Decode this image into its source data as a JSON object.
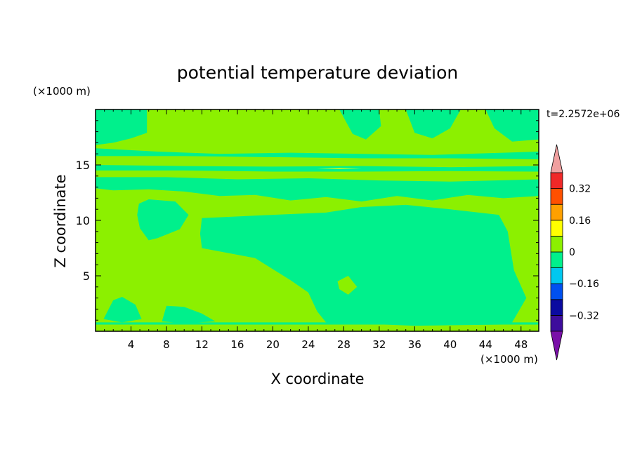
{
  "chart_data": {
    "type": "heatmap",
    "title": "potential temperature deviation",
    "xlabel": "X coordinate",
    "ylabel": "Z coordinate",
    "x_unit": "(×1000 m)",
    "y_unit": "(×1000 m)",
    "time_label": "t=2.2572e+06",
    "xlim": [
      0,
      50
    ],
    "ylim": [
      0,
      20
    ],
    "x_ticks": [
      4,
      8,
      12,
      16,
      20,
      24,
      28,
      32,
      36,
      40,
      44,
      48
    ],
    "y_ticks": [
      5,
      10,
      15
    ],
    "colorbar": {
      "levels": [
        {
          "lo": -0.4,
          "hi": -0.32,
          "color": "#3d0d9c"
        },
        {
          "lo": -0.32,
          "hi": -0.24,
          "color": "#0a0aa0"
        },
        {
          "lo": -0.24,
          "hi": -0.16,
          "color": "#0050f0"
        },
        {
          "lo": -0.16,
          "hi": -0.08,
          "color": "#00c8f0"
        },
        {
          "lo": -0.08,
          "hi": 0,
          "color": "#00f08c"
        },
        {
          "lo": 0,
          "hi": 0.08,
          "color": "#8cf000"
        },
        {
          "lo": 0.08,
          "hi": 0.16,
          "color": "#ffff00"
        },
        {
          "lo": 0.16,
          "hi": 0.24,
          "color": "#ffa000"
        },
        {
          "lo": 0.24,
          "hi": 0.32,
          "color": "#ff5000"
        },
        {
          "lo": 0.32,
          "hi": 0.4,
          "color": "#f02828"
        }
      ],
      "under_color": "#7a10a8",
      "over_color": "#f0a0a0",
      "tick_labels": [
        {
          "value": 0.32,
          "label": "0.32"
        },
        {
          "value": 0.16,
          "label": "0.16"
        },
        {
          "value": 0,
          "label": "0"
        },
        {
          "value": -0.16,
          "label": "−0.16"
        },
        {
          "value": -0.32,
          "label": "−0.32"
        }
      ]
    },
    "regions": [
      {
        "level": 0.04,
        "note": "background",
        "points": [
          [
            0,
            0
          ],
          [
            50,
            0
          ],
          [
            50,
            20
          ],
          [
            0,
            20
          ]
        ]
      },
      {
        "level": -0.04,
        "points": [
          [
            0,
            20
          ],
          [
            5.8,
            20
          ],
          [
            5.8,
            17.9
          ],
          [
            4,
            17.4
          ],
          [
            2,
            17.0
          ],
          [
            0,
            16.8
          ]
        ]
      },
      {
        "level": -0.04,
        "points": [
          [
            27.5,
            20
          ],
          [
            32,
            20
          ],
          [
            32.2,
            18.5
          ],
          [
            30.5,
            17.3
          ],
          [
            29,
            17.8
          ]
        ]
      },
      {
        "level": -0.04,
        "points": [
          [
            35,
            20
          ],
          [
            41.2,
            20
          ],
          [
            40,
            18.3
          ],
          [
            38,
            17.4
          ],
          [
            36,
            17.9
          ]
        ]
      },
      {
        "level": -0.04,
        "points": [
          [
            44,
            20
          ],
          [
            50,
            20
          ],
          [
            50,
            17.3
          ],
          [
            47,
            17.1
          ],
          [
            45,
            18.3
          ]
        ]
      },
      {
        "level": -0.04,
        "points": [
          [
            0,
            16.5
          ],
          [
            7,
            16.2
          ],
          [
            14,
            16.0
          ],
          [
            22,
            16.1
          ],
          [
            30,
            16.0
          ],
          [
            38,
            15.9
          ],
          [
            46,
            16.1
          ],
          [
            50,
            16.2
          ],
          [
            50,
            15.5
          ],
          [
            40,
            15.6
          ],
          [
            30,
            15.6
          ],
          [
            20,
            15.7
          ],
          [
            10,
            15.8
          ],
          [
            0,
            15.8
          ]
        ]
      },
      {
        "level": -0.04,
        "points": [
          [
            0,
            15.0
          ],
          [
            10,
            14.9
          ],
          [
            20,
            14.85
          ],
          [
            30,
            14.9
          ],
          [
            40,
            14.8
          ],
          [
            50,
            14.9
          ],
          [
            50,
            14.4
          ],
          [
            40,
            14.45
          ],
          [
            30,
            14.4
          ],
          [
            20,
            14.4
          ],
          [
            10,
            14.5
          ],
          [
            0,
            14.5
          ]
        ]
      },
      {
        "level": -0.04,
        "points": [
          [
            0,
            13.9
          ],
          [
            8,
            13.9
          ],
          [
            16,
            13.7
          ],
          [
            24,
            13.8
          ],
          [
            32,
            13.6
          ],
          [
            40,
            13.5
          ],
          [
            50,
            13.7
          ],
          [
            50,
            12.2
          ],
          [
            46,
            12.0
          ],
          [
            42,
            12.3
          ],
          [
            38,
            11.8
          ],
          [
            34,
            12.2
          ],
          [
            30,
            11.7
          ],
          [
            26,
            12.1
          ],
          [
            22,
            11.8
          ],
          [
            18,
            12.3
          ],
          [
            14,
            12.2
          ],
          [
            10,
            12.6
          ],
          [
            6,
            12.8
          ],
          [
            2,
            12.7
          ],
          [
            0,
            12.9
          ]
        ]
      },
      {
        "level": -0.04,
        "points": [
          [
            4.9,
            11.5
          ],
          [
            6,
            11.9
          ],
          [
            9,
            11.7
          ],
          [
            10.5,
            10.5
          ],
          [
            9.5,
            9.2
          ],
          [
            7,
            8.4
          ],
          [
            6,
            8.2
          ],
          [
            5,
            9.3
          ],
          [
            4.7,
            10.5
          ]
        ]
      },
      {
        "level": -0.04,
        "points": [
          [
            12,
            10.2
          ],
          [
            20,
            10.5
          ],
          [
            26,
            10.7
          ],
          [
            30,
            11.2
          ],
          [
            35,
            11.4
          ],
          [
            40,
            11.0
          ],
          [
            45.5,
            10.5
          ],
          [
            46.5,
            9.0
          ],
          [
            47.2,
            5.5
          ],
          [
            48.6,
            3.0
          ],
          [
            47.0,
            0.8
          ],
          [
            46.0,
            0.6
          ],
          [
            36,
            0.5
          ],
          [
            26,
            0.8
          ],
          [
            25,
            1.8
          ],
          [
            24,
            3.5
          ],
          [
            22,
            4.6
          ],
          [
            18,
            6.6
          ],
          [
            14,
            7.2
          ],
          [
            12,
            7.5
          ],
          [
            11.8,
            8.8
          ]
        ]
      },
      {
        "level": -0.04,
        "points": [
          [
            35,
            9.5
          ],
          [
            34.5,
            6.0
          ],
          [
            35.5,
            5.8
          ],
          [
            38,
            6.9
          ],
          [
            39.4,
            8.6
          ],
          [
            40.5,
            10.0
          ],
          [
            38,
            10.5
          ]
        ]
      },
      {
        "level": -0.04,
        "points": [
          [
            0.9,
            1.1
          ],
          [
            2,
            2.8
          ],
          [
            3,
            3.1
          ],
          [
            4.5,
            2.4
          ],
          [
            5.2,
            1.1
          ],
          [
            3,
            0.8
          ]
        ]
      },
      {
        "level": -0.04,
        "points": [
          [
            7.5,
            0.9
          ],
          [
            8,
            2.3
          ],
          [
            10,
            2.2
          ],
          [
            12,
            1.6
          ],
          [
            13.5,
            0.9
          ],
          [
            10,
            0.7
          ]
        ]
      },
      {
        "level": 0.04,
        "points": [
          [
            27.3,
            4.5
          ],
          [
            28.5,
            5.0
          ],
          [
            29.5,
            4.0
          ],
          [
            28.5,
            3.3
          ],
          [
            27.5,
            3.8
          ]
        ]
      },
      {
        "level": 0.04,
        "points": [
          [
            23.5,
            11.7
          ],
          [
            26,
            11.9
          ],
          [
            28,
            11.6
          ],
          [
            25,
            11.5
          ]
        ]
      },
      {
        "level": -0.04,
        "points": [
          [
            0,
            0.8
          ],
          [
            50,
            0.8
          ],
          [
            50,
            0.6
          ],
          [
            0,
            0.6
          ]
        ]
      },
      {
        "level": 0.04,
        "points": [
          [
            0,
            0.5
          ],
          [
            50,
            0.5
          ],
          [
            50,
            0.3
          ],
          [
            0,
            0.3
          ]
        ]
      },
      {
        "level": 0.12,
        "points": [
          [
            25,
            14.68
          ],
          [
            27.5,
            14.72
          ],
          [
            30,
            14.68
          ],
          [
            27.5,
            14.64
          ]
        ]
      }
    ]
  }
}
